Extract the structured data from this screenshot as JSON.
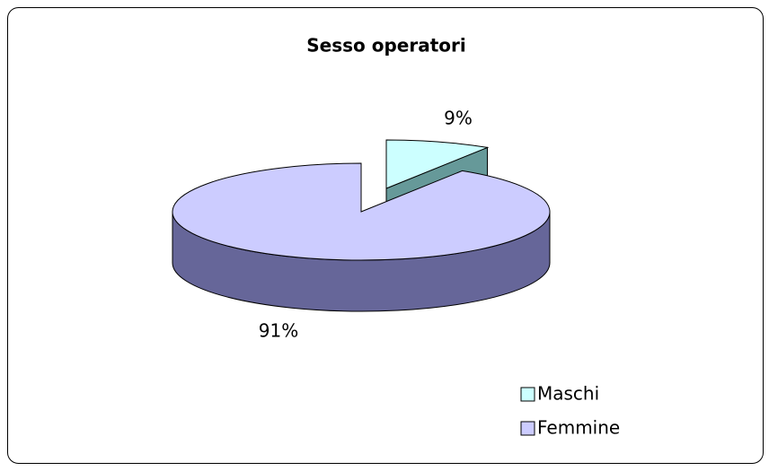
{
  "chart_data": {
    "type": "pie",
    "title": "Sesso operatori",
    "categories": [
      "Maschi",
      "Femmine"
    ],
    "values": [
      9,
      91
    ],
    "value_labels": [
      "9%",
      "91%"
    ],
    "colors": [
      "#ccffff",
      "#ccccff"
    ],
    "side_colors": [
      "#669999",
      "#666699"
    ],
    "legend": "bottom-right"
  }
}
